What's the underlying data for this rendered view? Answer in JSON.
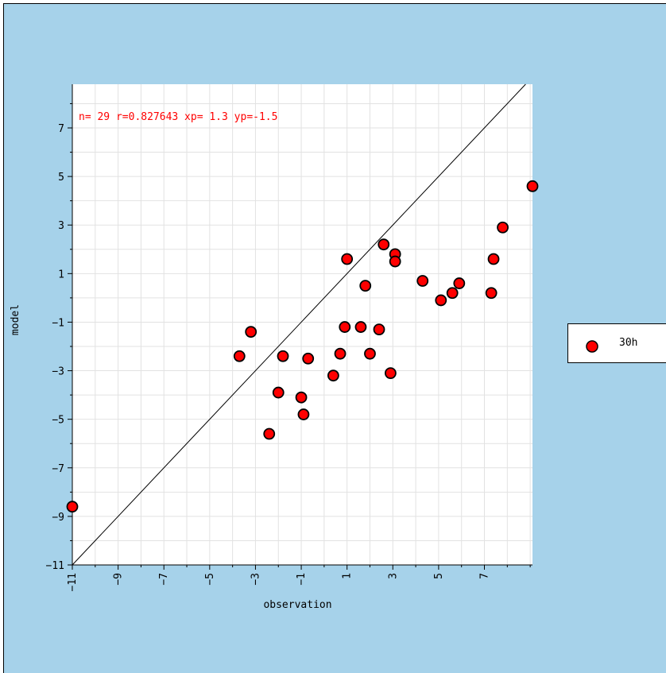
{
  "chart_data": {
    "type": "scatter",
    "title": "",
    "xlabel": "observation",
    "ylabel": "model",
    "xlim": [
      -11,
      9.1
    ],
    "ylim": [
      -11,
      8.8
    ],
    "x_ticks": [
      -11,
      -9,
      -7,
      -5,
      -3,
      -1,
      1,
      3,
      5,
      7
    ],
    "y_ticks": [
      -11,
      -9,
      -7,
      -5,
      -3,
      -1,
      1,
      3,
      5,
      7
    ],
    "grid": true,
    "stats_text": "n=  29 r=0.827643 xp= 1.3 yp=-1.5",
    "reference_line": "y = x",
    "legend_position": "right",
    "series": [
      {
        "name": "30h",
        "color": "#ff0000",
        "points": [
          [
            -11,
            -8.6
          ],
          [
            -3.7,
            -2.4
          ],
          [
            -3.2,
            -1.4
          ],
          [
            -2.4,
            -5.6
          ],
          [
            -2.0,
            -3.9
          ],
          [
            -1.8,
            -2.4
          ],
          [
            -1.0,
            -4.1
          ],
          [
            -0.9,
            -4.8
          ],
          [
            -0.7,
            -2.5
          ],
          [
            0.4,
            -3.2
          ],
          [
            0.7,
            -2.3
          ],
          [
            0.9,
            -1.2
          ],
          [
            1.0,
            1.6
          ],
          [
            1.6,
            -1.2
          ],
          [
            1.8,
            0.5
          ],
          [
            2.0,
            -2.3
          ],
          [
            2.4,
            -1.3
          ],
          [
            2.6,
            2.2
          ],
          [
            2.9,
            -3.1
          ],
          [
            3.1,
            1.8
          ],
          [
            3.1,
            1.5
          ],
          [
            4.3,
            0.7
          ],
          [
            5.1,
            -0.1
          ],
          [
            5.6,
            0.2
          ],
          [
            5.9,
            0.6
          ],
          [
            7.3,
            0.2
          ],
          [
            7.4,
            1.6
          ],
          [
            7.8,
            2.9
          ],
          [
            9.1,
            4.6
          ]
        ]
      }
    ]
  }
}
